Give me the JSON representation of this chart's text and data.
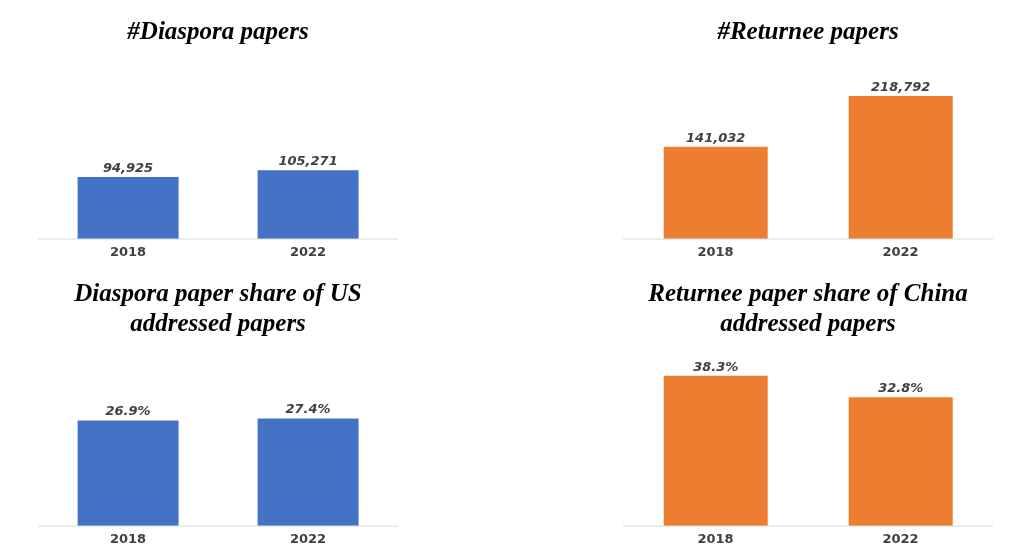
{
  "chart_data": [
    {
      "type": "bar",
      "title": "#Diaspora papers",
      "categories": [
        "2018",
        "2022"
      ],
      "values": [
        94925,
        105271
      ],
      "color": "#4472c4",
      "value_labels": [
        "94,925",
        "105,271"
      ],
      "tick_labels": "x"
    },
    {
      "type": "bar",
      "title": "#Returnee papers",
      "categories": [
        "2018",
        "2022"
      ],
      "values": [
        141032,
        218792
      ],
      "color": "#ed7d31",
      "value_labels": [
        "141,032",
        "218,792"
      ],
      "tick_labels": "x"
    },
    {
      "type": "bar",
      "title": "Diaspora paper share of US addressed papers",
      "categories": [
        "2018",
        "2022"
      ],
      "values": [
        26.9,
        27.4
      ],
      "color": "#4472c4",
      "value_labels": [
        "26.9%",
        "27.4%"
      ],
      "tick_labels": "x"
    },
    {
      "type": "bar",
      "title": "Returnee paper share of China addressed papers",
      "categories": [
        "2018",
        "2022"
      ],
      "values": [
        38.3,
        32.8
      ],
      "color": "#ed7d31",
      "value_labels": [
        "38.3%",
        "32.8%"
      ],
      "tick_labels": "x"
    }
  ]
}
